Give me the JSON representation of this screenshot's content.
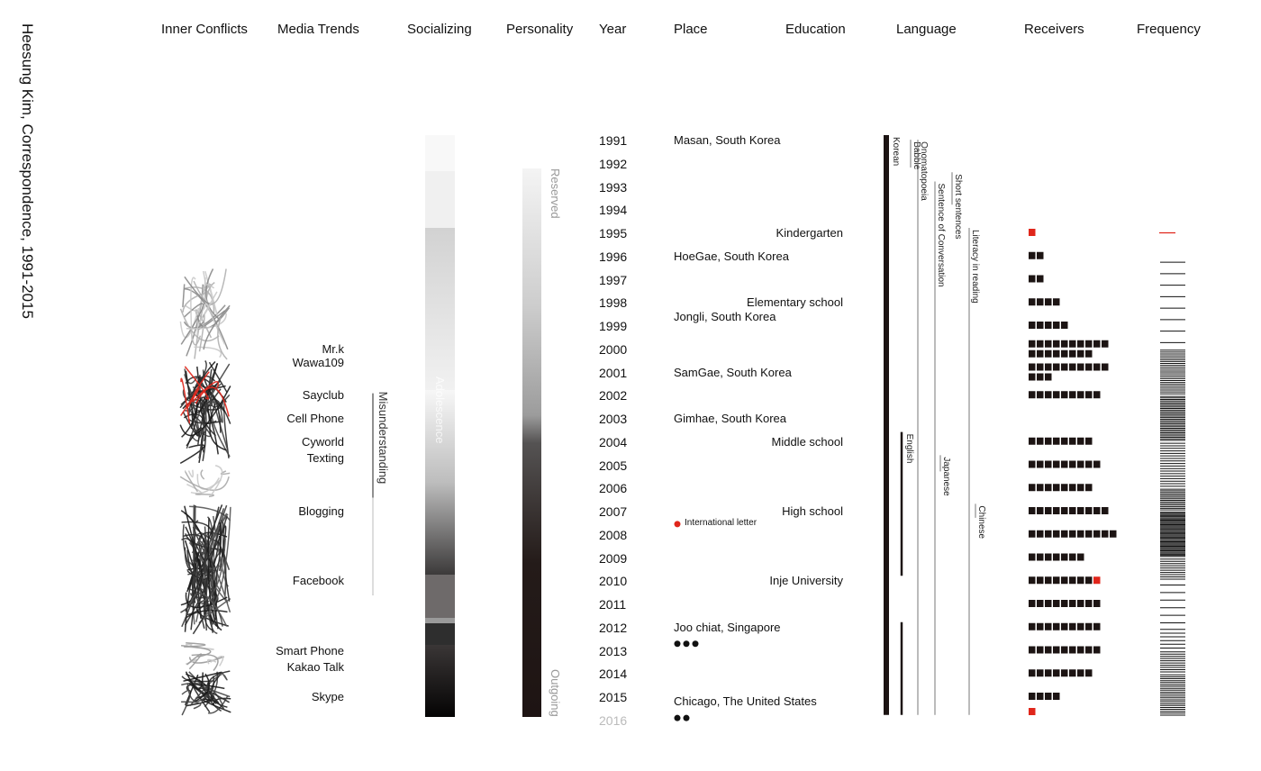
{
  "chart_data": {
    "type": "table",
    "title": "Heesung Kim, Correspondence, 1991-2015",
    "columns": [
      "Inner Conflicts",
      "Media Trends",
      "Socializing",
      "Personality",
      "Year",
      "Place",
      "Education",
      "Language",
      "Receivers",
      "Frequency"
    ],
    "years": [
      1991,
      1992,
      1993,
      1994,
      1995,
      1996,
      1997,
      1998,
      1999,
      2000,
      2001,
      2002,
      2003,
      2004,
      2005,
      2006,
      2007,
      2008,
      2009,
      2010,
      2011,
      2012,
      2013,
      2014,
      2015
    ],
    "future_year": "2016",
    "media": [
      {
        "label": "Mr.k",
        "year": 2000
      },
      {
        "label": "Wawa109",
        "year": 2000.6
      },
      {
        "label": "Sayclub",
        "year": 2002
      },
      {
        "label": "Cell Phone",
        "year": 2003
      },
      {
        "label": "Cyworld",
        "year": 2004
      },
      {
        "label": "Texting",
        "year": 2004.7
      },
      {
        "label": "Blogging",
        "year": 2007
      },
      {
        "label": "Facebook",
        "year": 2010
      },
      {
        "label": "Smart Phone",
        "year": 2013
      },
      {
        "label": "Kakao Talk",
        "year": 2013.7
      },
      {
        "label": "Skype",
        "year": 2015
      }
    ],
    "misunderstanding": {
      "label": "Misunderstanding",
      "start": 2001.9,
      "end": 2010.6
    },
    "socializing_label": "Adolescence",
    "personality": {
      "start_label": "Reserved",
      "end_label": "Outgoing"
    },
    "places": [
      {
        "label": "Masan, South Korea",
        "year": 1991
      },
      {
        "label": "HoeGae, South Korea",
        "year": 1996
      },
      {
        "label": "Jongli, South Korea",
        "year": 1998.6
      },
      {
        "label": "SamGae, South Korea",
        "year": 2001
      },
      {
        "label": "Gimhae, South Korea",
        "year": 2003
      },
      {
        "label": "Joo chiat, Singapore",
        "year": 2012
      },
      {
        "label": "Chicago, The United States",
        "year": 2015.2
      }
    ],
    "place_dots": [
      {
        "year": 2012.7,
        "count": 3
      },
      {
        "year": 2015.9,
        "count": 2
      }
    ],
    "international_letter": {
      "label": "International letter",
      "year": 2007.5
    },
    "education": [
      {
        "label": "Kindergarten",
        "year": 1995
      },
      {
        "label": "Elementary school",
        "year": 1998
      },
      {
        "label": "Middle school",
        "year": 2004
      },
      {
        "label": "High school",
        "year": 2007
      },
      {
        "label": "Inje University",
        "year": 2010
      }
    ],
    "languages": [
      {
        "label": "Korean",
        "start": 1991,
        "end": 2016,
        "style": "thick"
      },
      {
        "label": "Babble",
        "start": 1991.2,
        "end": 1992.4,
        "style": "thin"
      },
      {
        "label": "Onomatopoeia",
        "start": 1991.2,
        "end": 2016,
        "style": "thin"
      },
      {
        "label": "Short sentences",
        "start": 1992.6,
        "end": 1994,
        "style": "thin"
      },
      {
        "label": "Sentence of Conversation",
        "start": 1993,
        "end": 2016,
        "style": "thin"
      },
      {
        "label": "Literacy in reading",
        "start": 1995,
        "end": 2016,
        "style": "thin"
      },
      {
        "label": "English",
        "start": 2003.8,
        "end": 2010,
        "style": "medium"
      },
      {
        "label": "English",
        "start": 2012,
        "end": 2016,
        "style": "medium"
      },
      {
        "label": "Japanese",
        "start": 2004.8,
        "end": 2005.5,
        "style": "thin"
      },
      {
        "label": "Chinese",
        "start": 2006.9,
        "end": 2007.5,
        "style": "thin"
      }
    ],
    "receivers": [
      {
        "year": 1995,
        "counts": [
          1
        ],
        "red": 1
      },
      {
        "year": 1996,
        "counts": [
          2
        ],
        "red": 0
      },
      {
        "year": 1997,
        "counts": [
          2
        ],
        "red": 0
      },
      {
        "year": 1998,
        "counts": [
          4
        ],
        "red": 0
      },
      {
        "year": 1999,
        "counts": [
          5
        ],
        "red": 0
      },
      {
        "year": 2000,
        "counts": [
          10,
          8
        ],
        "red": 0
      },
      {
        "year": 2001,
        "counts": [
          10,
          3
        ],
        "red": 0
      },
      {
        "year": 2002,
        "counts": [
          9
        ],
        "red": 0
      },
      {
        "year": 2004,
        "counts": [
          8
        ],
        "red": 0
      },
      {
        "year": 2005,
        "counts": [
          9
        ],
        "red": 0
      },
      {
        "year": 2006,
        "counts": [
          8
        ],
        "red": 0
      },
      {
        "year": 2007,
        "counts": [
          10
        ],
        "red": 0
      },
      {
        "year": 2008,
        "counts": [
          11
        ],
        "red": 0
      },
      {
        "year": 2009,
        "counts": [
          7
        ],
        "red": 0
      },
      {
        "year": 2010,
        "counts": [
          9
        ],
        "red": 1
      },
      {
        "year": 2011,
        "counts": [
          9
        ],
        "red": 0
      },
      {
        "year": 2012,
        "counts": [
          9
        ],
        "red": 0
      },
      {
        "year": 2013,
        "counts": [
          9
        ],
        "red": 0
      },
      {
        "year": 2014,
        "counts": [
          8
        ],
        "red": 0
      },
      {
        "year": 2015,
        "counts": [
          4
        ],
        "red": 0
      },
      {
        "year": 2016,
        "counts": [
          1
        ],
        "red": 1
      }
    ],
    "frequency": [
      {
        "start": 1995,
        "end": 1996,
        "lines": 1
      },
      {
        "start": 1996,
        "end": 2000,
        "lines": 8
      },
      {
        "start": 2000,
        "end": 2002,
        "lines": 24
      },
      {
        "start": 2002,
        "end": 2004,
        "lines": 30
      },
      {
        "start": 2004,
        "end": 2006,
        "lines": 18
      },
      {
        "start": 2006,
        "end": 2007,
        "lines": 14
      },
      {
        "start": 2007,
        "end": 2009,
        "lines": 40
      },
      {
        "start": 2009,
        "end": 2010,
        "lines": 10
      },
      {
        "start": 2010,
        "end": 2012,
        "lines": 6
      },
      {
        "start": 2012,
        "end": 2013,
        "lines": 6
      },
      {
        "start": 2013,
        "end": 2014,
        "lines": 10
      },
      {
        "start": 2014,
        "end": 2016,
        "lines": 22
      }
    ],
    "colors": {
      "red": "#e0261b",
      "dark": "#1c1413",
      "gray": "#888888",
      "light": "#b5b5b5"
    }
  }
}
